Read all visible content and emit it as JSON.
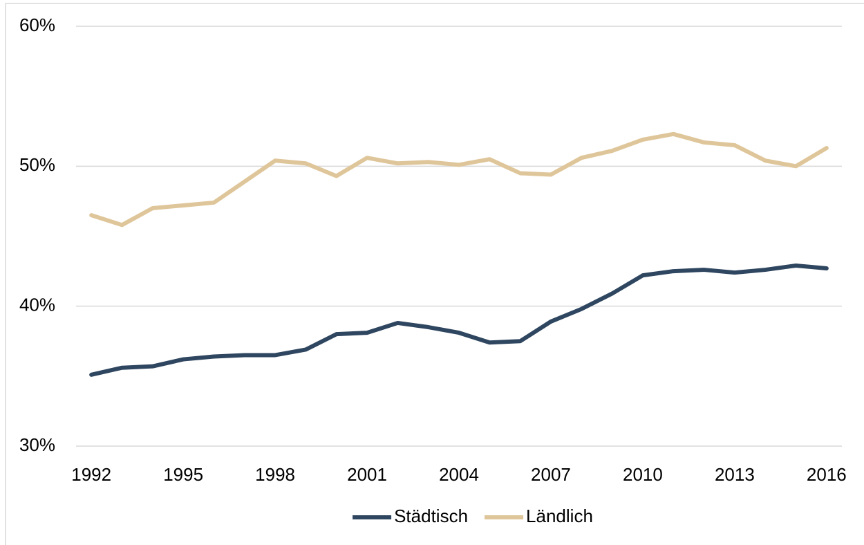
{
  "chart_data": {
    "type": "line",
    "x": [
      1992,
      1993,
      1994,
      1995,
      1996,
      1997,
      1998,
      1999,
      2000,
      2001,
      2002,
      2003,
      2004,
      2005,
      2006,
      2007,
      2008,
      2009,
      2010,
      2011,
      2012,
      2013,
      2014,
      2015,
      2016
    ],
    "series": [
      {
        "name": "Städtisch",
        "color": "#2f4660",
        "values": [
          35.1,
          35.6,
          35.7,
          36.2,
          36.4,
          36.5,
          36.5,
          36.9,
          38.0,
          38.1,
          38.8,
          38.5,
          38.1,
          37.4,
          37.5,
          38.9,
          39.8,
          40.9,
          42.2,
          42.5,
          42.6,
          42.4,
          42.6,
          42.9,
          42.7
        ]
      },
      {
        "name": "Ländlich",
        "color": "#dfc69a",
        "values": [
          46.5,
          45.8,
          47.0,
          47.2,
          47.4,
          48.9,
          50.4,
          50.2,
          49.3,
          50.6,
          50.2,
          50.3,
          50.1,
          50.5,
          49.5,
          49.4,
          50.6,
          51.1,
          51.9,
          52.3,
          51.7,
          51.5,
          50.4,
          50.0,
          51.3
        ]
      }
    ],
    "xlim": [
      1991.5,
      2016.5
    ],
    "xticks": [
      1992,
      1995,
      1998,
      2001,
      2004,
      2007,
      2010,
      2013,
      2016
    ],
    "ylim": [
      30,
      60
    ],
    "yticks": [
      {
        "value": 30,
        "label": "30%"
      },
      {
        "value": 40,
        "label": "40%"
      },
      {
        "value": 50,
        "label": "50%"
      },
      {
        "value": 60,
        "label": "60%"
      }
    ],
    "grid": true,
    "legend": "bottom"
  }
}
